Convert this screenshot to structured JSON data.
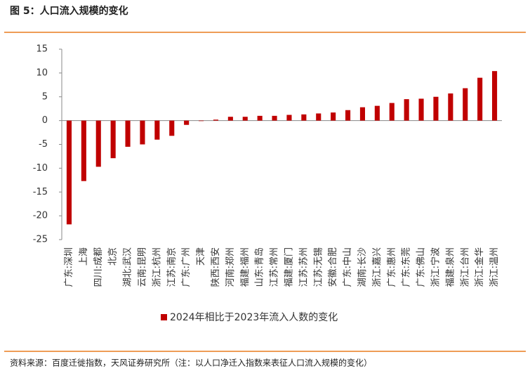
{
  "chart_data": {
    "type": "bar",
    "title": "图 5：人口流入规模的变化",
    "source": "资料来源：百度迁徙指数，天风证券研究所（注：以人口净迁入指数来表征人口流入规模的变化）",
    "categories": [
      "广东:深圳",
      "上海",
      "四川:成都",
      "北京",
      "湖北:武汉",
      "云南:昆明",
      "浙江:杭州",
      "江苏:南京",
      "广东:广州",
      "天津",
      "陕西:西安",
      "河南:郑州",
      "福建:福州",
      "山东:青岛",
      "江苏:常州",
      "福建:厦门",
      "江苏:苏州",
      "江苏:无锡",
      "安徽:合肥",
      "广东:中山",
      "湖南:长沙",
      "浙江:嘉兴",
      "广东:惠州",
      "广东:东莞",
      "广东:佛山",
      "浙江:宁波",
      "福建:泉州",
      "浙江:台州",
      "浙江:金华",
      "浙江:温州"
    ],
    "series": [
      {
        "name": "2024年相比于2023年流入人数的变化",
        "color": "#c00000",
        "values": [
          -21.8,
          -12.7,
          -9.7,
          -7.9,
          -5.5,
          -5.0,
          -4.0,
          -3.2,
          -0.9,
          -0.1,
          0.2,
          0.8,
          0.8,
          1.0,
          1.0,
          1.2,
          1.3,
          1.5,
          1.7,
          2.2,
          2.8,
          3.1,
          3.7,
          4.5,
          4.6,
          5.0,
          5.7,
          6.8,
          9.0,
          10.4
        ]
      }
    ],
    "ylim": [
      -25,
      15
    ],
    "yticks": [
      -25,
      -20,
      -15,
      -10,
      -5,
      0,
      5,
      10,
      15
    ],
    "grid": false
  }
}
